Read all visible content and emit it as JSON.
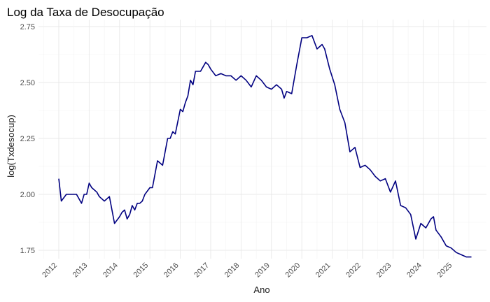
{
  "chart_data": {
    "type": "line",
    "title": "Log da Taxa de Desocupação",
    "xlabel": "Ano",
    "ylabel": "log(Txdesocup)",
    "ylim": [
      1.72,
      2.77
    ],
    "y_ticks": [
      1.75,
      2.0,
      2.25,
      2.5,
      2.75
    ],
    "y_tick_labels": [
      "1.75",
      "2.00",
      "2.25",
      "2.50",
      "2.75"
    ],
    "x_ticks": [
      "2012",
      "2013",
      "2014",
      "2015",
      "2016",
      "2017",
      "2018",
      "2019",
      "2020",
      "2021",
      "2022",
      "2023",
      "2024",
      "2025"
    ],
    "grid": true,
    "legend": "none",
    "line_color": "#000080",
    "series": [
      {
        "x": [
          "2012-01",
          "2012-02",
          "2012-04",
          "2012-06",
          "2012-08",
          "2012-10",
          "2012-11",
          "2012-12",
          "2013-01",
          "2013-02",
          "2013-04",
          "2013-05",
          "2013-07",
          "2013-09",
          "2013-11",
          "2014-01",
          "2014-02",
          "2014-03",
          "2014-04",
          "2014-05",
          "2014-06",
          "2014-07",
          "2014-08",
          "2014-09",
          "2014-10",
          "2014-11",
          "2015-01",
          "2015-02",
          "2015-04",
          "2015-06",
          "2015-08",
          "2015-09",
          "2015-10",
          "2015-11",
          "2016-01",
          "2016-02",
          "2016-03",
          "2016-04",
          "2016-05",
          "2016-06",
          "2016-07",
          "2016-09",
          "2016-11",
          "2016-12",
          "2017-01",
          "2017-03",
          "2017-05",
          "2017-07",
          "2017-09",
          "2017-11",
          "2018-01",
          "2018-03",
          "2018-05",
          "2018-07",
          "2018-09",
          "2018-11",
          "2019-01",
          "2019-03",
          "2019-05",
          "2019-06",
          "2019-07",
          "2019-09",
          "2019-11",
          "2020-01",
          "2020-03",
          "2020-05",
          "2020-07",
          "2020-09",
          "2020-10",
          "2020-12",
          "2021-02",
          "2021-04",
          "2021-06",
          "2021-08",
          "2021-10",
          "2021-12",
          "2022-02",
          "2022-04",
          "2022-06",
          "2022-08",
          "2022-10",
          "2022-12",
          "2023-02",
          "2023-04",
          "2023-06",
          "2023-08",
          "2023-10",
          "2023-12",
          "2024-02",
          "2024-04",
          "2024-05",
          "2024-06",
          "2024-08",
          "2024-10",
          "2024-12",
          "2025-02",
          "2025-04",
          "2025-06",
          "2025-07",
          "2025-08"
        ],
        "values": [
          2.07,
          1.97,
          2.0,
          2.0,
          2.0,
          1.96,
          2.0,
          2.0,
          2.05,
          2.03,
          2.01,
          1.99,
          1.97,
          1.99,
          1.87,
          1.9,
          1.92,
          1.93,
          1.89,
          1.91,
          1.95,
          1.93,
          1.96,
          1.96,
          1.97,
          2.0,
          2.03,
          2.03,
          2.15,
          2.13,
          2.25,
          2.25,
          2.28,
          2.27,
          2.38,
          2.37,
          2.41,
          2.44,
          2.51,
          2.49,
          2.55,
          2.55,
          2.59,
          2.58,
          2.56,
          2.53,
          2.54,
          2.53,
          2.53,
          2.51,
          2.53,
          2.51,
          2.48,
          2.53,
          2.51,
          2.48,
          2.47,
          2.49,
          2.47,
          2.43,
          2.46,
          2.45,
          2.58,
          2.7,
          2.7,
          2.71,
          2.65,
          2.67,
          2.65,
          2.56,
          2.49,
          2.38,
          2.32,
          2.19,
          2.21,
          2.12,
          2.13,
          2.11,
          2.08,
          2.06,
          2.07,
          2.01,
          2.06,
          1.95,
          1.94,
          1.91,
          1.8,
          1.87,
          1.85,
          1.89,
          1.9,
          1.84,
          1.81,
          1.77,
          1.76,
          1.74,
          1.73,
          1.72,
          1.72,
          1.72
        ]
      }
    ]
  }
}
